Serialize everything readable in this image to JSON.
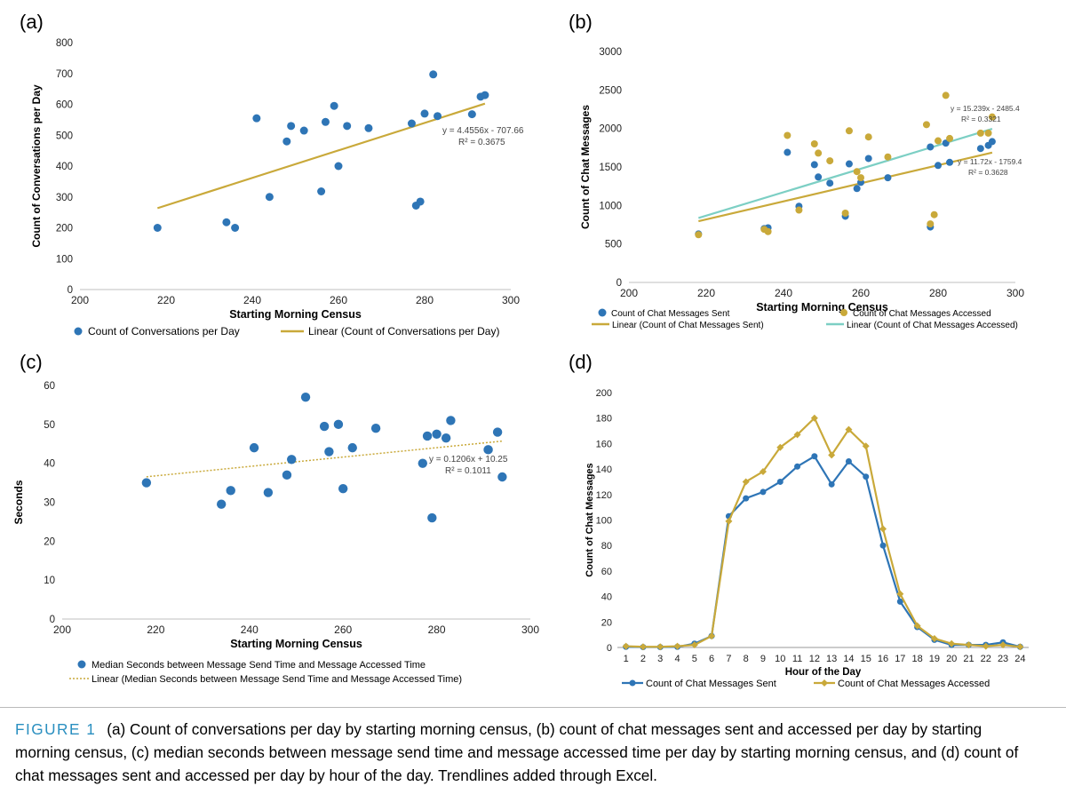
{
  "panel_labels": [
    "(a)",
    "(b)",
    "(c)",
    "(d)"
  ],
  "caption": {
    "figure_label": "FIGURE 1",
    "text": "(a) Count of conversations per day by starting morning census, (b) count of chat messages sent and accessed per day by starting morning census, (c) median seconds between message send time and message accessed time per day by starting morning census, and (d) count of chat messages sent and accessed per day by hour of the day. Trendlines added through Excel."
  },
  "colors": {
    "blue": "#2e75b6",
    "gold": "#c9a93a",
    "teal": "#7ccfc4"
  },
  "chart_data": [
    {
      "id": "a",
      "type": "scatter",
      "title": "",
      "xlabel": "Starting Morning Census",
      "ylabel": "Count of Conversations per Day",
      "xlim": [
        200,
        300
      ],
      "ylim": [
        0,
        800
      ],
      "xticks": [
        200,
        220,
        240,
        260,
        280,
        300
      ],
      "yticks": [
        0,
        100,
        200,
        300,
        400,
        500,
        600,
        700,
        800
      ],
      "series": [
        {
          "name": "Count of Conversations per Day",
          "color": "#2e75b6",
          "points": [
            [
              218,
              200
            ],
            [
              234,
              218
            ],
            [
              236,
              200
            ],
            [
              241,
              555
            ],
            [
              244,
              300
            ],
            [
              248,
              480
            ],
            [
              249,
              530
            ],
            [
              252,
              515
            ],
            [
              256,
              318
            ],
            [
              257,
              543
            ],
            [
              259,
              595
            ],
            [
              260,
              400
            ],
            [
              262,
              530
            ],
            [
              267,
              523
            ],
            [
              277,
              538
            ],
            [
              278,
              272
            ],
            [
              279,
              285
            ],
            [
              280,
              570
            ],
            [
              282,
              697
            ],
            [
              283,
              562
            ],
            [
              291,
              568
            ],
            [
              293,
              625
            ],
            [
              294,
              630
            ]
          ]
        }
      ],
      "trendlines": [
        {
          "name": "Linear (Count of Conversations per Day)",
          "slope": 4.4556,
          "intercept": -707.66,
          "x_range": [
            218,
            294
          ],
          "color": "#c9a93a",
          "equation": "y = 4.4556x - 707.66",
          "r2": "R² = 0.3675"
        }
      ]
    },
    {
      "id": "b",
      "type": "scatter",
      "title": "",
      "xlabel": "Starting Morning Census",
      "ylabel": "Count of Chat Messages",
      "xlim": [
        200,
        300
      ],
      "ylim": [
        0,
        3000
      ],
      "xticks": [
        200,
        220,
        240,
        260,
        280,
        300
      ],
      "yticks": [
        0,
        500,
        1000,
        1500,
        2000,
        2500,
        3000
      ],
      "series": [
        {
          "name": "Count of Chat Messages Sent",
          "color": "#2e75b6",
          "points": [
            [
              218,
              630
            ],
            [
              235,
              700
            ],
            [
              236,
              710
            ],
            [
              241,
              1690
            ],
            [
              244,
              990
            ],
            [
              248,
              1530
            ],
            [
              249,
              1370
            ],
            [
              252,
              1290
            ],
            [
              256,
              860
            ],
            [
              257,
              1540
            ],
            [
              259,
              1220
            ],
            [
              260,
              1300
            ],
            [
              262,
              1610
            ],
            [
              267,
              1360
            ],
            [
              278,
              1760
            ],
            [
              278,
              720
            ],
            [
              280,
              1520
            ],
            [
              282,
              1810
            ],
            [
              283,
              1560
            ],
            [
              291,
              1740
            ],
            [
              293,
              1780
            ],
            [
              294,
              1830
            ]
          ]
        },
        {
          "name": "Count of Chat Messages Accessed",
          "color": "#c9a93a",
          "points": [
            [
              218,
              620
            ],
            [
              235,
              690
            ],
            [
              236,
              660
            ],
            [
              241,
              1910
            ],
            [
              244,
              940
            ],
            [
              248,
              1800
            ],
            [
              249,
              1680
            ],
            [
              252,
              1580
            ],
            [
              256,
              900
            ],
            [
              257,
              1970
            ],
            [
              259,
              1440
            ],
            [
              260,
              1360
            ],
            [
              262,
              1890
            ],
            [
              267,
              1630
            ],
            [
              277,
              2050
            ],
            [
              278,
              760
            ],
            [
              279,
              880
            ],
            [
              280,
              1840
            ],
            [
              282,
              2430
            ],
            [
              283,
              1870
            ],
            [
              291,
              1940
            ],
            [
              293,
              1940
            ],
            [
              294,
              2150
            ]
          ]
        }
      ],
      "trendlines": [
        {
          "name": "Linear (Count of Chat Messages Sent)",
          "slope": 11.72,
          "intercept": -1759.4,
          "x_range": [
            218,
            294
          ],
          "color": "#c9a93a",
          "equation": "y = 11.72x - 1759.4",
          "r2": "R² = 0.3628"
        },
        {
          "name": "Linear (Count of Chat Messages Accessed)",
          "slope": 15.239,
          "intercept": -2485.4,
          "x_range": [
            218,
            294
          ],
          "color": "#7ccfc4",
          "equation": "y = 15.239x - 2485.4",
          "r2": "R² = 0.3321"
        }
      ]
    },
    {
      "id": "c",
      "type": "scatter",
      "title": "",
      "xlabel": "Starting Morning Census",
      "ylabel": "Seconds",
      "xlim": [
        200,
        300
      ],
      "ylim": [
        0,
        60
      ],
      "xticks": [
        200,
        220,
        240,
        260,
        280,
        300
      ],
      "yticks": [
        0,
        10,
        20,
        30,
        40,
        50,
        60
      ],
      "series": [
        {
          "name": "Median Seconds between Message Send Time and Message Accessed Time",
          "color": "#2e75b6",
          "points": [
            [
              218,
              35
            ],
            [
              234,
              29.5
            ],
            [
              236,
              33
            ],
            [
              241,
              44
            ],
            [
              244,
              32.5
            ],
            [
              248,
              37
            ],
            [
              249,
              41
            ],
            [
              252,
              57
            ],
            [
              256,
              49.5
            ],
            [
              257,
              43
            ],
            [
              259,
              50
            ],
            [
              260,
              33.5
            ],
            [
              262,
              44
            ],
            [
              267,
              49
            ],
            [
              277,
              40
            ],
            [
              278,
              47
            ],
            [
              279,
              26
            ],
            [
              280,
              47.5
            ],
            [
              282,
              46.5
            ],
            [
              283,
              51
            ],
            [
              291,
              43.5
            ],
            [
              293,
              48
            ],
            [
              294,
              36.5
            ]
          ]
        }
      ],
      "trendlines": [
        {
          "name": "Linear (Median Seconds between Message Send Time and Message Accessed Time)",
          "slope": 0.1206,
          "intercept": 10.25,
          "x_range": [
            218,
            294
          ],
          "color": "#c9a93a",
          "dotted": true,
          "equation": "y = 0.1206x + 10.25",
          "r2": "R² = 0.1011"
        }
      ]
    },
    {
      "id": "d",
      "type": "line",
      "title": "",
      "xlabel": "Hour of the Day",
      "ylabel": "Count of Chat Messages",
      "ylim": [
        0,
        200
      ],
      "yticks": [
        0,
        20,
        40,
        60,
        80,
        100,
        120,
        140,
        160,
        180,
        200
      ],
      "categories": [
        "1",
        "2",
        "3",
        "4",
        "5",
        "6",
        "7",
        "8",
        "9",
        "10",
        "11",
        "12",
        "13",
        "14",
        "15",
        "16",
        "17",
        "18",
        "19",
        "20",
        "21",
        "22",
        "23",
        "24"
      ],
      "series": [
        {
          "name": "Count of Chat Messages Sent",
          "color": "#2e75b6",
          "marker": "circle",
          "values": [
            0.5,
            0.3,
            0.3,
            0.5,
            3,
            9,
            103,
            117,
            122,
            130,
            142,
            150,
            128,
            146,
            134,
            80,
            36,
            16,
            6,
            2,
            2,
            2,
            4,
            0.5
          ]
        },
        {
          "name": "Count of Chat Messages Accessed",
          "color": "#c9a93a",
          "marker": "diamond",
          "values": [
            1,
            0.5,
            0.5,
            1,
            2,
            9,
            99,
            130,
            138,
            157,
            167,
            180,
            151,
            171,
            158,
            93,
            42,
            17,
            7,
            3,
            2,
            1,
            2,
            0.5
          ]
        }
      ]
    }
  ]
}
